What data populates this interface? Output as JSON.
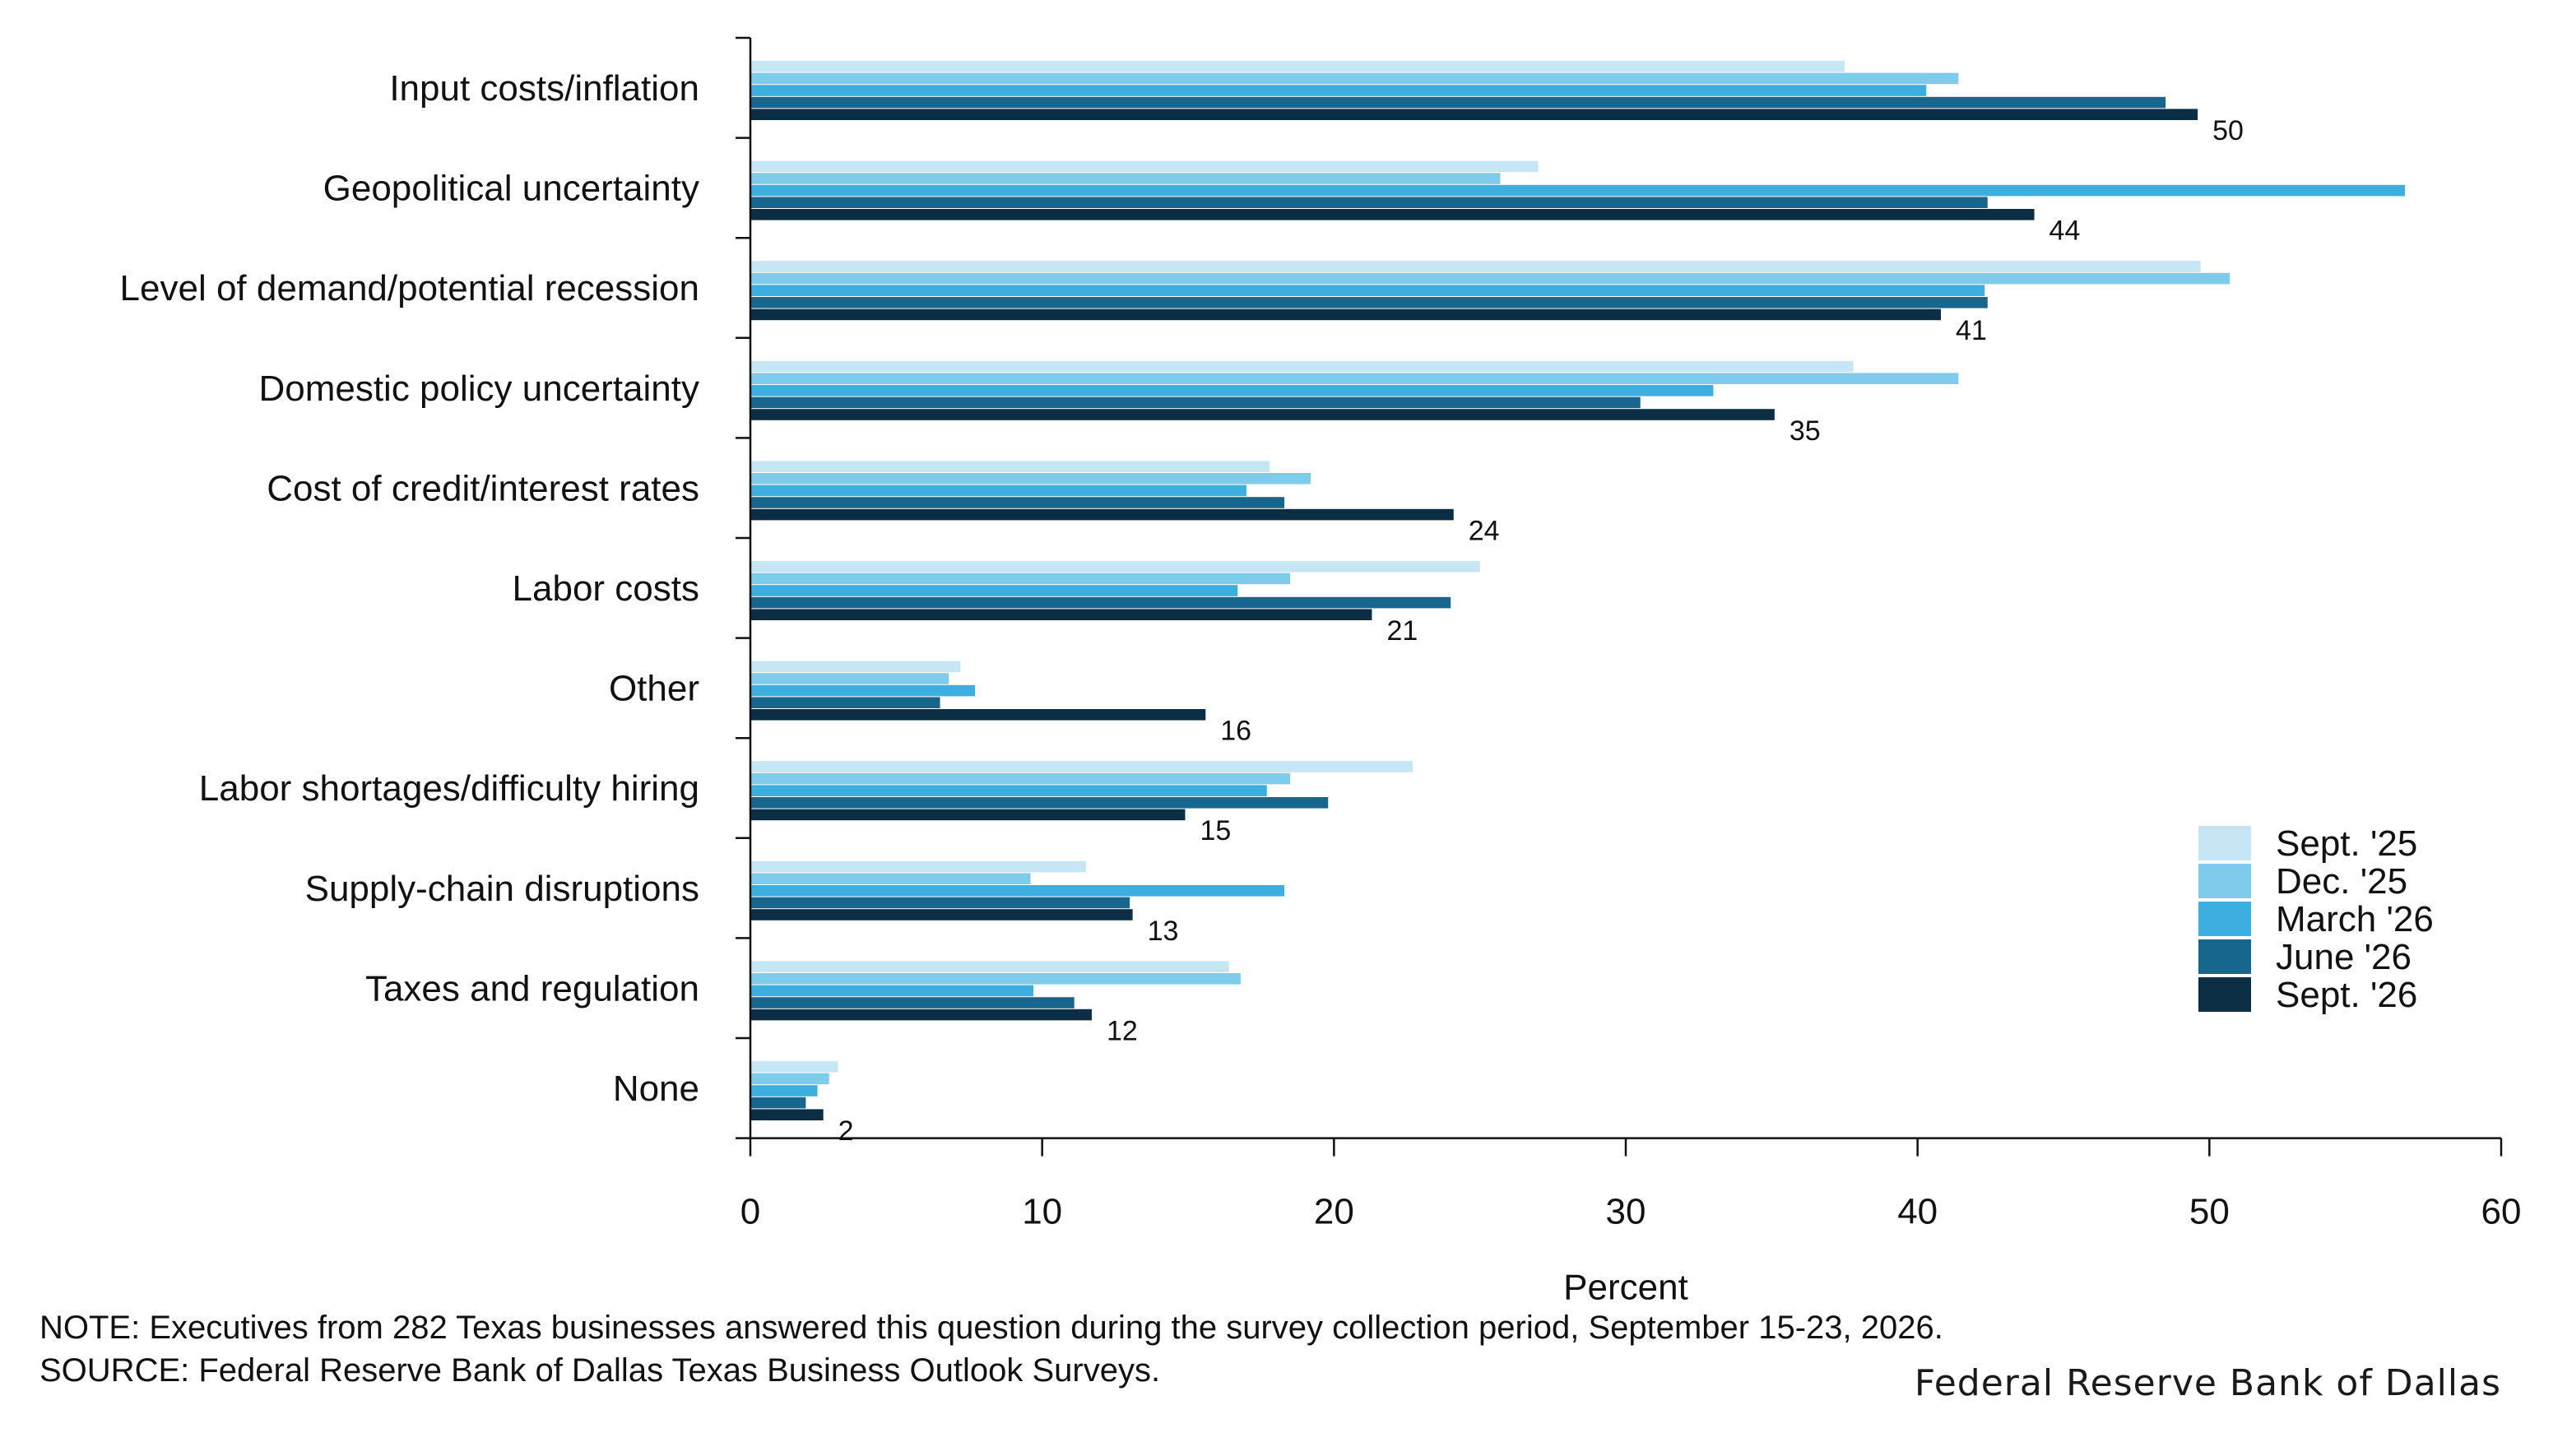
{
  "chart_data": {
    "type": "bar",
    "orientation": "horizontal",
    "categories": [
      "Input costs/inflation",
      "Geopolitical uncertainty",
      "Level of demand/potential recession",
      "Domestic policy uncertainty",
      "Cost of credit/interest rates",
      "Labor costs",
      "Other",
      "Labor shortages/difficulty hiring",
      "Supply-chain disruptions",
      "Taxes and regulation",
      "None"
    ],
    "series": [
      {
        "name": "Sept. '25",
        "color": "#c6e6f5",
        "values": [
          37.5,
          27.0,
          49.7,
          37.8,
          17.8,
          25.0,
          7.2,
          22.7,
          11.5,
          16.4,
          3.0
        ]
      },
      {
        "name": "Dec. '25",
        "color": "#7ecbec",
        "values": [
          41.4,
          25.7,
          50.7,
          41.4,
          19.2,
          18.5,
          6.8,
          18.5,
          9.6,
          16.8,
          2.7
        ]
      },
      {
        "name": "March '26",
        "color": "#3daee0",
        "values": [
          40.3,
          56.7,
          42.3,
          33.0,
          17.0,
          16.7,
          7.7,
          17.7,
          18.3,
          9.7,
          2.3
        ]
      },
      {
        "name": "June '26",
        "color": "#17668d",
        "values": [
          48.5,
          42.4,
          42.4,
          30.5,
          18.3,
          24.0,
          6.5,
          19.8,
          13.0,
          11.1,
          1.9
        ]
      },
      {
        "name": "Sept. '26",
        "color": "#0b2e45",
        "values": [
          49.6,
          44.0,
          40.8,
          35.1,
          24.1,
          21.3,
          15.6,
          14.9,
          13.1,
          11.7,
          2.5
        ]
      }
    ],
    "data_labels": [
      "50",
      "44",
      "41",
      "35",
      "24",
      "21",
      "16",
      "15",
      "13",
      "12",
      "2"
    ],
    "xlabel": "Percent",
    "ylabel": "",
    "xlim": [
      0,
      60
    ],
    "xticks": [
      "0",
      "10",
      "20",
      "30",
      "40",
      "50",
      "60"
    ],
    "grid": false,
    "legend_position": "bottom-right"
  },
  "footer": {
    "note": "NOTE: Executives from 282 Texas businesses answered this question during the survey collection period, September 15-23, 2026.",
    "source": "SOURCE: Federal Reserve Bank of Dallas Texas Business Outlook Surveys.",
    "brand": "Federal Reserve Bank of Dallas"
  }
}
